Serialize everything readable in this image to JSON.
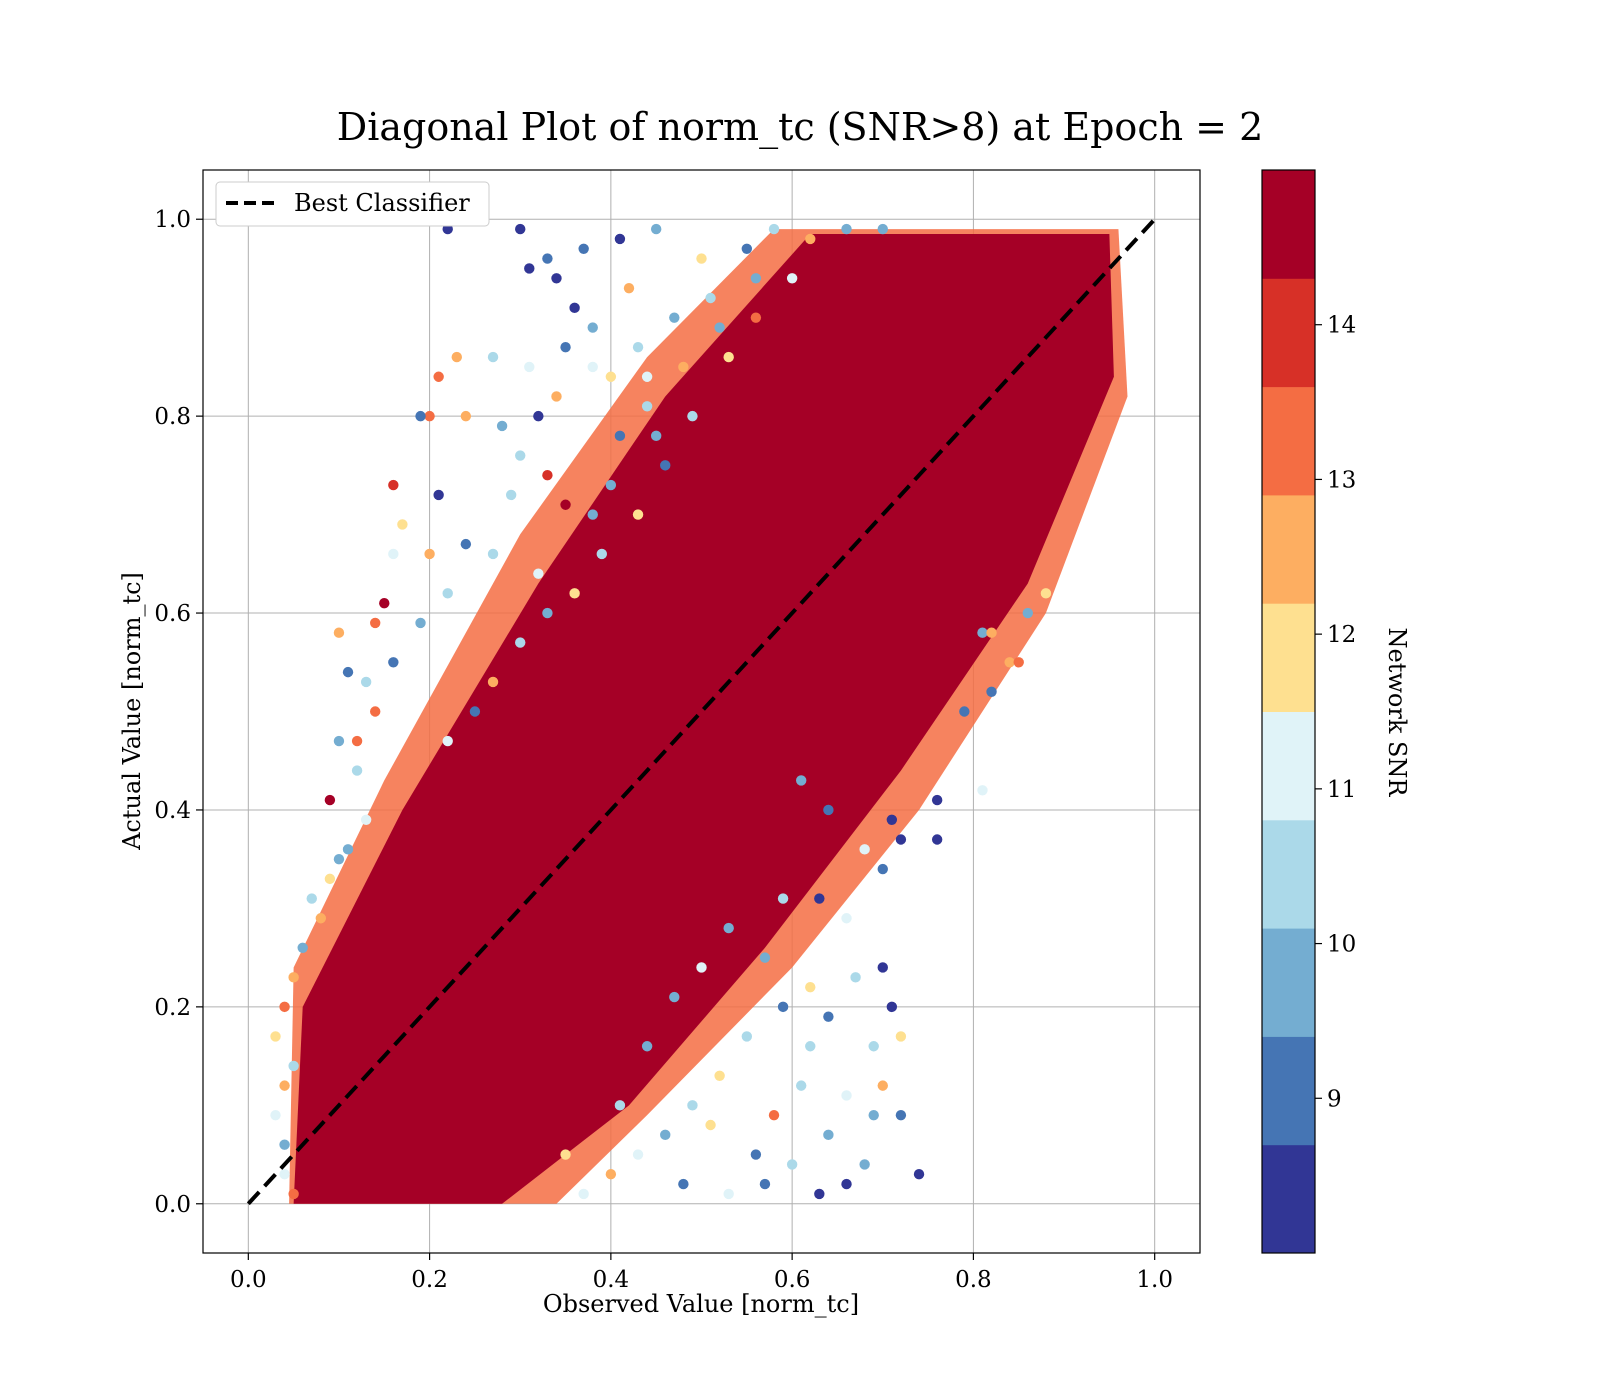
{
  "chart_data": {
    "type": "scatter",
    "title": "Diagonal Plot of norm_tc (SNR>8) at Epoch = 2",
    "xlabel": "Observed Value [norm_tc]",
    "ylabel": "Actual Value [norm_tc]",
    "xlim": [
      -0.05,
      1.05
    ],
    "ylim": [
      -0.05,
      1.05
    ],
    "x_ticks": [
      "0.0",
      "0.2",
      "0.4",
      "0.6",
      "0.8",
      "1.0"
    ],
    "y_ticks": [
      "0.0",
      "0.2",
      "0.4",
      "0.6",
      "0.8",
      "1.0"
    ],
    "x_tick_values": [
      0.0,
      0.2,
      0.4,
      0.6,
      0.8,
      1.0
    ],
    "y_tick_values": [
      0.0,
      0.2,
      0.4,
      0.6,
      0.8,
      1.0
    ],
    "grid": true,
    "legend": {
      "placement": "top-left",
      "entries": [
        "Best Classifier"
      ]
    },
    "reference_line": {
      "name": "Best Classifier",
      "x": [
        0.0,
        1.0
      ],
      "y": [
        0.0,
        1.0
      ],
      "style": "dashed",
      "color": "#000000"
    },
    "colorbar": {
      "label": "Network SNR",
      "range": [
        8,
        15
      ],
      "ticks": [
        "9",
        "10",
        "11",
        "12",
        "13",
        "14"
      ],
      "tick_values": [
        9,
        10,
        11,
        12,
        13,
        14
      ],
      "colors": [
        "#313695",
        "#4575b4",
        "#74add1",
        "#abd9e9",
        "#e0f3f8",
        "#fee090",
        "#fdae61",
        "#f46d43",
        "#d73027",
        "#a50026"
      ]
    },
    "point_color_default": "#a50026",
    "points": [
      [
        0.22,
        0.99,
        8.3
      ],
      [
        0.3,
        0.99,
        8.4
      ],
      [
        0.33,
        0.96,
        9.0
      ],
      [
        0.31,
        0.95,
        8.6
      ],
      [
        0.34,
        0.94,
        8.2
      ],
      [
        0.37,
        0.97,
        9.2
      ],
      [
        0.41,
        0.98,
        8.3
      ],
      [
        0.45,
        0.99,
        10.0
      ],
      [
        0.42,
        0.93,
        12.3
      ],
      [
        0.36,
        0.91,
        8.5
      ],
      [
        0.38,
        0.89,
        9.4
      ],
      [
        0.43,
        0.87,
        10.6
      ],
      [
        0.35,
        0.87,
        9.1
      ],
      [
        0.38,
        0.85,
        11.4
      ],
      [
        0.4,
        0.84,
        12.2
      ],
      [
        0.44,
        0.81,
        10.3
      ],
      [
        0.34,
        0.82,
        12.6
      ],
      [
        0.31,
        0.85,
        10.9
      ],
      [
        0.23,
        0.86,
        12.8
      ],
      [
        0.21,
        0.84,
        13.1
      ],
      [
        0.27,
        0.86,
        10.5
      ],
      [
        0.32,
        0.8,
        8.3
      ],
      [
        0.28,
        0.79,
        9.6
      ],
      [
        0.2,
        0.8,
        13.4
      ],
      [
        0.24,
        0.8,
        12.7
      ],
      [
        0.19,
        0.8,
        9.1
      ],
      [
        0.3,
        0.76,
        10.7
      ],
      [
        0.33,
        0.74,
        13.9
      ],
      [
        0.29,
        0.72,
        10.2
      ],
      [
        0.35,
        0.71,
        14.7
      ],
      [
        0.16,
        0.73,
        14.2
      ],
      [
        0.21,
        0.72,
        8.2
      ],
      [
        0.24,
        0.67,
        9.3
      ],
      [
        0.27,
        0.66,
        10.4
      ],
      [
        0.17,
        0.69,
        12.1
      ],
      [
        0.16,
        0.66,
        10.9
      ],
      [
        0.15,
        0.61,
        14.6
      ],
      [
        0.2,
        0.66,
        12.5
      ],
      [
        0.22,
        0.62,
        10.3
      ],
      [
        0.19,
        0.59,
        9.7
      ],
      [
        0.14,
        0.59,
        13.6
      ],
      [
        0.1,
        0.58,
        12.4
      ],
      [
        0.11,
        0.54,
        9.0
      ],
      [
        0.13,
        0.53,
        10.6
      ],
      [
        0.16,
        0.55,
        9.2
      ],
      [
        0.1,
        0.47,
        9.5
      ],
      [
        0.12,
        0.47,
        13.5
      ],
      [
        0.14,
        0.5,
        12.9
      ],
      [
        0.12,
        0.44,
        10.5
      ],
      [
        0.09,
        0.41,
        14.3
      ],
      [
        0.13,
        0.39,
        11.3
      ],
      [
        0.11,
        0.36,
        9.4
      ],
      [
        0.09,
        0.33,
        12.1
      ],
      [
        0.1,
        0.35,
        9.8
      ],
      [
        0.07,
        0.31,
        10.7
      ],
      [
        0.08,
        0.29,
        12.8
      ],
      [
        0.06,
        0.26,
        9.9
      ],
      [
        0.05,
        0.23,
        12.3
      ],
      [
        0.04,
        0.2,
        13.2
      ],
      [
        0.03,
        0.17,
        11.6
      ],
      [
        0.05,
        0.14,
        10.2
      ],
      [
        0.04,
        0.12,
        12.5
      ],
      [
        0.03,
        0.09,
        11.2
      ],
      [
        0.04,
        0.06,
        9.6
      ],
      [
        0.04,
        0.03,
        11.3
      ],
      [
        0.05,
        0.01,
        12.9
      ],
      [
        0.57,
        0.02,
        9.2
      ],
      [
        0.6,
        0.04,
        10.3
      ],
      [
        0.63,
        0.01,
        8.2
      ],
      [
        0.66,
        0.02,
        8.4
      ],
      [
        0.68,
        0.04,
        9.5
      ],
      [
        0.64,
        0.07,
        10.0
      ],
      [
        0.69,
        0.09,
        9.7
      ],
      [
        0.66,
        0.11,
        10.9
      ],
      [
        0.7,
        0.12,
        12.3
      ],
      [
        0.72,
        0.09,
        9.1
      ],
      [
        0.74,
        0.03,
        8.3
      ],
      [
        0.69,
        0.16,
        10.6
      ],
      [
        0.72,
        0.17,
        12.2
      ],
      [
        0.71,
        0.2,
        8.5
      ],
      [
        0.7,
        0.24,
        8.2
      ],
      [
        0.67,
        0.23,
        10.2
      ],
      [
        0.64,
        0.19,
        9.1
      ],
      [
        0.62,
        0.22,
        11.6
      ],
      [
        0.66,
        0.29,
        10.9
      ],
      [
        0.63,
        0.31,
        8.7
      ],
      [
        0.7,
        0.34,
        9.0
      ],
      [
        0.72,
        0.37,
        8.6
      ],
      [
        0.71,
        0.39,
        8.4
      ],
      [
        0.76,
        0.37,
        8.5
      ],
      [
        0.68,
        0.36,
        10.8
      ],
      [
        0.64,
        0.4,
        9.3
      ],
      [
        0.61,
        0.43,
        10.1
      ],
      [
        0.76,
        0.41,
        8.3
      ],
      [
        0.79,
        0.5,
        9.0
      ],
      [
        0.82,
        0.52,
        9.1
      ],
      [
        0.84,
        0.55,
        12.8
      ],
      [
        0.85,
        0.55,
        13.6
      ],
      [
        0.81,
        0.58,
        10.1
      ],
      [
        0.86,
        0.6,
        9.4
      ],
      [
        0.88,
        0.62,
        11.6
      ],
      [
        0.82,
        0.58,
        12.4
      ],
      [
        0.81,
        0.42,
        11.2
      ],
      [
        0.59,
        0.31,
        10.7
      ],
      [
        0.57,
        0.25,
        9.6
      ],
      [
        0.55,
        0.17,
        10.4
      ],
      [
        0.52,
        0.13,
        12.1
      ],
      [
        0.49,
        0.1,
        10.6
      ],
      [
        0.46,
        0.07,
        9.4
      ],
      [
        0.43,
        0.05,
        11.3
      ],
      [
        0.4,
        0.03,
        12.7
      ],
      [
        0.37,
        0.01,
        10.9
      ],
      [
        0.58,
        0.09,
        13.5
      ],
      [
        0.61,
        0.12,
        10.4
      ],
      [
        0.47,
        0.21,
        10.0
      ],
      [
        0.44,
        0.16,
        9.6
      ],
      [
        0.5,
        0.24,
        11.1
      ],
      [
        0.53,
        0.28,
        9.5
      ],
      [
        0.41,
        0.1,
        10.2
      ],
      [
        0.35,
        0.05,
        12.2
      ],
      [
        0.56,
        0.05,
        9.1
      ],
      [
        0.53,
        0.01,
        10.8
      ],
      [
        0.48,
        0.02,
        9.3
      ],
      [
        0.62,
        0.16,
        10.3
      ],
      [
        0.59,
        0.2,
        9.2
      ],
      [
        0.51,
        0.08,
        12.0
      ],
      [
        0.44,
        0.84,
        10.8
      ],
      [
        0.47,
        0.9,
        9.7
      ],
      [
        0.51,
        0.92,
        10.3
      ],
      [
        0.5,
        0.96,
        11.8
      ],
      [
        0.55,
        0.97,
        9.1
      ],
      [
        0.58,
        0.99,
        10.6
      ],
      [
        0.53,
        0.86,
        12.1
      ],
      [
        0.49,
        0.8,
        10.4
      ],
      [
        0.46,
        0.75,
        9.3
      ],
      [
        0.43,
        0.7,
        11.6
      ],
      [
        0.4,
        0.73,
        10.1
      ],
      [
        0.41,
        0.78,
        8.9
      ],
      [
        0.56,
        0.9,
        13.2
      ],
      [
        0.6,
        0.94,
        10.9
      ],
      [
        0.62,
        0.98,
        12.4
      ],
      [
        0.39,
        0.66,
        10.6
      ],
      [
        0.36,
        0.62,
        12.0
      ],
      [
        0.33,
        0.6,
        9.8
      ],
      [
        0.3,
        0.57,
        10.5
      ],
      [
        0.27,
        0.53,
        12.3
      ],
      [
        0.25,
        0.5,
        9.3
      ],
      [
        0.22,
        0.47,
        11.2
      ],
      [
        0.48,
        0.85,
        12.5
      ],
      [
        0.52,
        0.89,
        9.8
      ],
      [
        0.66,
        0.99,
        10.1
      ],
      [
        0.7,
        0.99,
        9.5
      ],
      [
        0.56,
        0.94,
        9.4
      ],
      [
        0.45,
        0.78,
        9.9
      ],
      [
        0.38,
        0.7,
        9.5
      ],
      [
        0.32,
        0.64,
        10.8
      ]
    ]
  }
}
